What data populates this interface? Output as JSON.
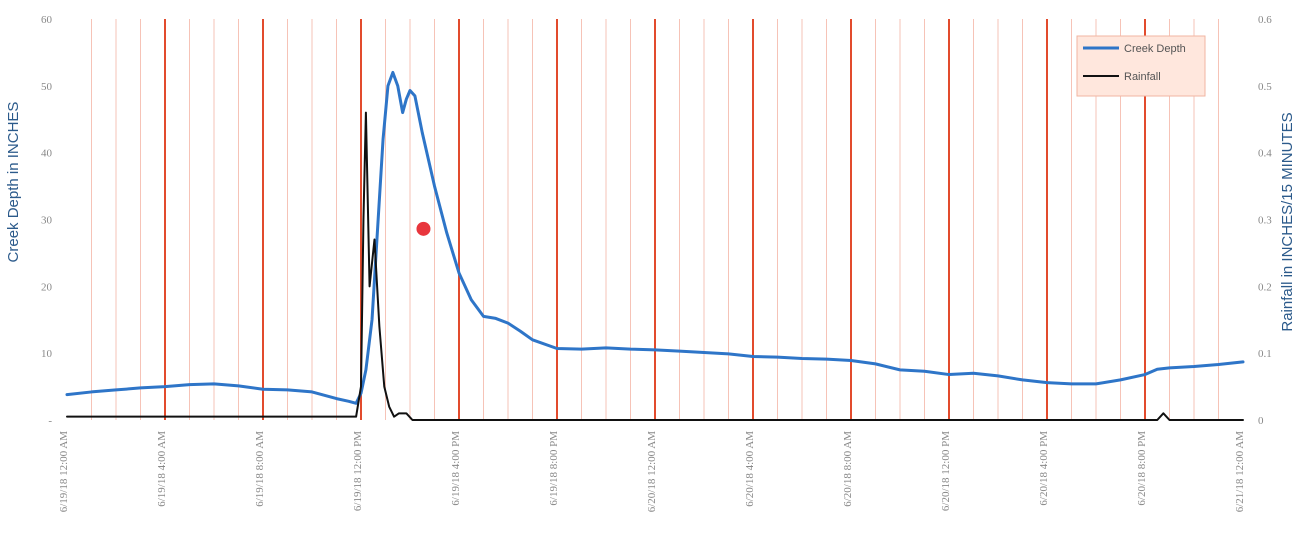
{
  "chart_data": {
    "type": "line",
    "x_labels": [
      "6/19/18 12:00 AM",
      "6/19/18 4:00 AM",
      "6/19/18 8:00 AM",
      "6/19/18 12:00 PM",
      "6/19/18 4:00 PM",
      "6/19/18 8:00 PM",
      "6/20/18 12:00 AM",
      "6/20/18 4:00 AM",
      "6/20/18 8:00 AM",
      "6/20/18 12:00 PM",
      "6/20/18 4:00 PM",
      "6/20/18 8:00 PM",
      "6/21/18 12:00 AM"
    ],
    "xlim_hours": [
      0,
      48
    ],
    "ylabel_left": "Creek Depth in INCHES",
    "ylabel_right": "Rainfall in INCHES/15 MINUTES",
    "ylim_left": [
      0,
      60
    ],
    "ylim_right": [
      0,
      0.6
    ],
    "yticks_left": [
      {
        "value": 0,
        "label": "-"
      },
      {
        "value": 10,
        "label": "10"
      },
      {
        "value": 20,
        "label": "20"
      },
      {
        "value": 30,
        "label": "30"
      },
      {
        "value": 40,
        "label": "40"
      },
      {
        "value": 50,
        "label": "50"
      },
      {
        "value": 60,
        "label": "60"
      }
    ],
    "yticks_right": [
      {
        "value": 0,
        "label": "0"
      },
      {
        "value": 0.1,
        "label": "0.1"
      },
      {
        "value": 0.2,
        "label": "0.2"
      },
      {
        "value": 0.3,
        "label": "0.3"
      },
      {
        "value": 0.4,
        "label": "0.4"
      },
      {
        "value": 0.5,
        "label": "0.5"
      },
      {
        "value": 0.6,
        "label": "0.6"
      }
    ],
    "grid": "vertical",
    "legend_position": "top-right",
    "series": [
      {
        "name": "Creek Depth",
        "axis": "left",
        "color": "#2e75c8",
        "points": [
          [
            0,
            3.8
          ],
          [
            1,
            4.2
          ],
          [
            2,
            4.5
          ],
          [
            3,
            4.8
          ],
          [
            4,
            5.0
          ],
          [
            5,
            5.3
          ],
          [
            6,
            5.4
          ],
          [
            7,
            5.1
          ],
          [
            8,
            4.6
          ],
          [
            9,
            4.5
          ],
          [
            10,
            4.2
          ],
          [
            11,
            3.2
          ],
          [
            11.5,
            2.8
          ],
          [
            11.8,
            2.5
          ],
          [
            12.0,
            4.0
          ],
          [
            12.2,
            7.5
          ],
          [
            12.45,
            15.0
          ],
          [
            12.7,
            30.0
          ],
          [
            12.9,
            42.0
          ],
          [
            13.1,
            50.0
          ],
          [
            13.3,
            52.0
          ],
          [
            13.5,
            50.0
          ],
          [
            13.7,
            46.0
          ],
          [
            13.85,
            48.0
          ],
          [
            14.0,
            49.3
          ],
          [
            14.2,
            48.5
          ],
          [
            14.5,
            43.0
          ],
          [
            15.0,
            35.0
          ],
          [
            15.5,
            28.0
          ],
          [
            16.0,
            22.0
          ],
          [
            16.5,
            18.0
          ],
          [
            17.0,
            15.5
          ],
          [
            17.5,
            15.2
          ],
          [
            18,
            14.5
          ],
          [
            18.5,
            13.3
          ],
          [
            19,
            12.0
          ],
          [
            20,
            10.7
          ],
          [
            21,
            10.6
          ],
          [
            22,
            10.8
          ],
          [
            23,
            10.6
          ],
          [
            24,
            10.5
          ],
          [
            25,
            10.3
          ],
          [
            26,
            10.1
          ],
          [
            27,
            9.9
          ],
          [
            28,
            9.5
          ],
          [
            29,
            9.4
          ],
          [
            30,
            9.2
          ],
          [
            31,
            9.1
          ],
          [
            32,
            8.9
          ],
          [
            33,
            8.4
          ],
          [
            34,
            7.5
          ],
          [
            35,
            7.3
          ],
          [
            36,
            6.8
          ],
          [
            37,
            7.0
          ],
          [
            38,
            6.6
          ],
          [
            39,
            6.0
          ],
          [
            40,
            5.6
          ],
          [
            41,
            5.4
          ],
          [
            42,
            5.4
          ],
          [
            43,
            6.0
          ],
          [
            44,
            6.8
          ],
          [
            44.5,
            7.6
          ],
          [
            45,
            7.8
          ],
          [
            46,
            8.0
          ],
          [
            47,
            8.3
          ],
          [
            48,
            8.7
          ]
        ]
      },
      {
        "name": "Rainfall",
        "axis": "right",
        "color": "#111111",
        "points": [
          [
            0,
            0.005
          ],
          [
            11.8,
            0.005
          ],
          [
            12.0,
            0.05
          ],
          [
            12.1,
            0.3
          ],
          [
            12.2,
            0.46
          ],
          [
            12.35,
            0.2
          ],
          [
            12.55,
            0.27
          ],
          [
            12.75,
            0.14
          ],
          [
            12.95,
            0.05
          ],
          [
            13.15,
            0.02
          ],
          [
            13.35,
            0.005
          ],
          [
            13.55,
            0.01
          ],
          [
            13.85,
            0.01
          ],
          [
            14.1,
            0.0
          ],
          [
            14.4,
            0.0
          ],
          [
            44.5,
            0.0
          ],
          [
            44.75,
            0.01
          ],
          [
            45.0,
            0.0
          ],
          [
            48,
            0.0
          ]
        ]
      }
    ],
    "marker": {
      "x_hours": 14.55,
      "y_value": 28.6,
      "color": "#e8363d"
    }
  }
}
